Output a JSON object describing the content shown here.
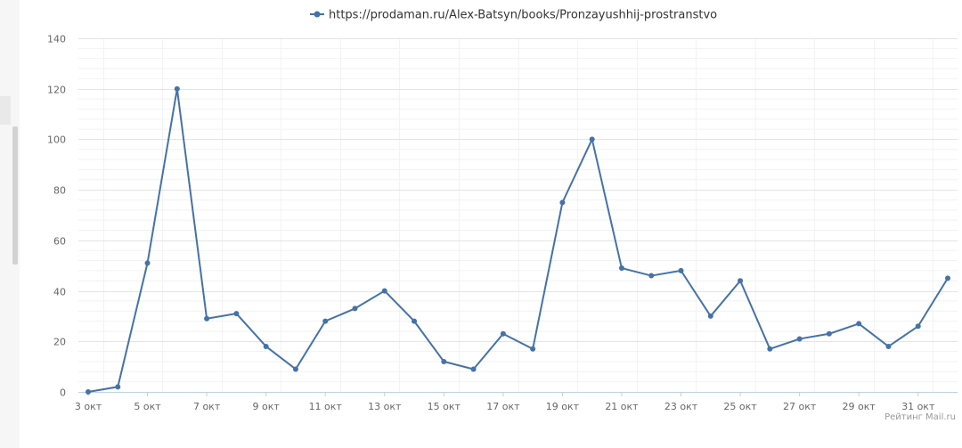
{
  "chart_data": {
    "type": "line",
    "title": "",
    "xlabel": "",
    "ylabel": "",
    "ylim": [
      0,
      140
    ],
    "yticks": [
      0,
      20,
      40,
      60,
      80,
      100,
      120,
      140
    ],
    "x": [
      "3 окт",
      "4 окт",
      "5 окт",
      "6 окт",
      "7 окт",
      "8 окт",
      "9 окт",
      "10 окт",
      "11 окт",
      "12 окт",
      "13 окт",
      "14 окт",
      "15 окт",
      "16 окт",
      "17 окт",
      "18 окт",
      "19 окт",
      "20 окт",
      "21 окт",
      "22 окт",
      "23 окт",
      "24 окт",
      "25 окт",
      "26 окт",
      "27 окт",
      "28 окт",
      "29 окт",
      "30 окт",
      "31 окт",
      "1 ноя"
    ],
    "xtick_labels": [
      "3 окт",
      "5 окт",
      "7 окт",
      "9 окт",
      "11 окт",
      "13 окт",
      "15 окт",
      "17 окт",
      "19 окт",
      "21 окт",
      "23 окт",
      "25 окт",
      "27 окт",
      "29 окт",
      "31 окт"
    ],
    "series": [
      {
        "name": "https://prodaman.ru/Alex-Batsyn/books/Pronzayushhij-prostranstvo",
        "color": "#4572a7",
        "values": [
          0,
          2,
          51,
          120,
          29,
          31,
          18,
          9,
          28,
          33,
          40,
          28,
          12,
          9,
          23,
          17,
          75,
          100,
          49,
          46,
          48,
          30,
          44,
          17,
          21,
          23,
          27,
          18,
          26,
          45
        ]
      }
    ],
    "legend_position": "top-center",
    "grid": true,
    "credit": "Рейтинг Mail.ru"
  }
}
